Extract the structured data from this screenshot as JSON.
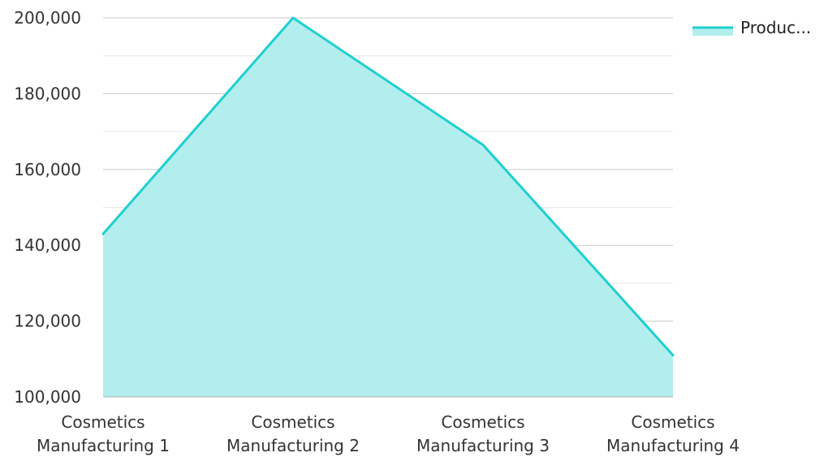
{
  "chart_data": {
    "type": "area",
    "categories": [
      [
        "Cosmetics",
        "Manufacturing 1"
      ],
      [
        "Cosmetics",
        "Manufacturing 2"
      ],
      [
        "Cosmetics",
        "Manufacturing 3"
      ],
      [
        "Cosmetics",
        "Manufacturing 4"
      ]
    ],
    "series": [
      {
        "name": "Produc...",
        "values": [
          143000,
          200000,
          166500,
          111000
        ],
        "line_color": "#1fcfd0",
        "fill_color": "#b2eeed"
      }
    ],
    "y_ticks": [
      "100,000",
      "120,000",
      "140,000",
      "160,000",
      "180,000",
      "200,000"
    ],
    "ylim": [
      100000,
      200000
    ],
    "grid": true,
    "legend_position": "top-right",
    "title": "",
    "xlabel": "",
    "ylabel": ""
  }
}
